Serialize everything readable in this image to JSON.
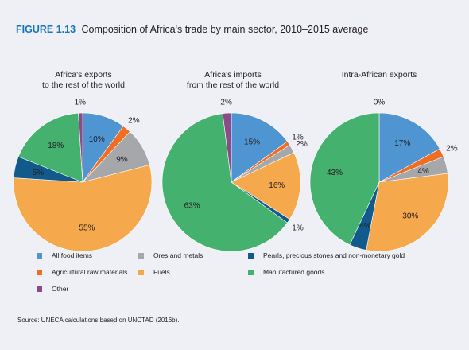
{
  "figure": {
    "label": "FIGURE 1.13",
    "title": "Composition of Africa's trade by main sector, 2010–2015 average"
  },
  "source": "Source: UNECA calculations based on UNCTAD (2016b).",
  "colors": {
    "All food items": "#4f95d2",
    "Agricultural raw materials": "#f26c21",
    "Ores and metals": "#a5a7aa",
    "Fuels": "#f6a84c",
    "Pearls, precious stones and non-monetary gold": "#125a8c",
    "Manufactured goods": "#44b26e",
    "Other": "#8c4a88"
  },
  "legend": [
    "All food items",
    "Ores and metals",
    "Pearls, precious stones and non-monetary gold",
    "Agricultural raw materials",
    "Fuels",
    "Manufactured goods",
    "Other"
  ],
  "chart_data": [
    {
      "type": "pie",
      "title_lines": [
        "Africa's exports",
        "to the rest of the world"
      ],
      "slices": [
        {
          "category": "All food items",
          "value": 10,
          "label": "10%"
        },
        {
          "category": "Agricultural raw materials",
          "value": 2,
          "label": "2%"
        },
        {
          "category": "Ores and metals",
          "value": 9,
          "label": "9%"
        },
        {
          "category": "Fuels",
          "value": 55,
          "label": "55%"
        },
        {
          "category": "Pearls, precious stones and non-monetary gold",
          "value": 5,
          "label": "5%"
        },
        {
          "category": "Manufactured goods",
          "value": 18,
          "label": "18%"
        },
        {
          "category": "Other",
          "value": 1,
          "label": "1%"
        }
      ]
    },
    {
      "type": "pie",
      "title_lines": [
        "Africa's imports",
        "from the rest of the world"
      ],
      "slices": [
        {
          "category": "All food items",
          "value": 15,
          "label": "15%"
        },
        {
          "category": "Agricultural raw materials",
          "value": 1,
          "label": "1%"
        },
        {
          "category": "Ores and metals",
          "value": 2,
          "label": "2%"
        },
        {
          "category": "Fuels",
          "value": 16,
          "label": "16%"
        },
        {
          "category": "Pearls, precious stones and non-monetary gold",
          "value": 1,
          "label": "1%"
        },
        {
          "category": "Manufactured goods",
          "value": 63,
          "label": "63%"
        },
        {
          "category": "Other",
          "value": 2,
          "label": "2%"
        }
      ]
    },
    {
      "type": "pie",
      "title_lines": [
        "Intra-African exports"
      ],
      "slices": [
        {
          "category": "All food items",
          "value": 17,
          "label": "17%"
        },
        {
          "category": "Agricultural raw materials",
          "value": 2,
          "label": "2%"
        },
        {
          "category": "Ores and metals",
          "value": 4,
          "label": "4%"
        },
        {
          "category": "Fuels",
          "value": 30,
          "label": "30%"
        },
        {
          "category": "Pearls, precious stones and non-monetary gold",
          "value": 4,
          "label": "4%"
        },
        {
          "category": "Manufactured goods",
          "value": 43,
          "label": "43%"
        },
        {
          "category": "Other",
          "value": 0,
          "label": "0%"
        }
      ]
    }
  ]
}
